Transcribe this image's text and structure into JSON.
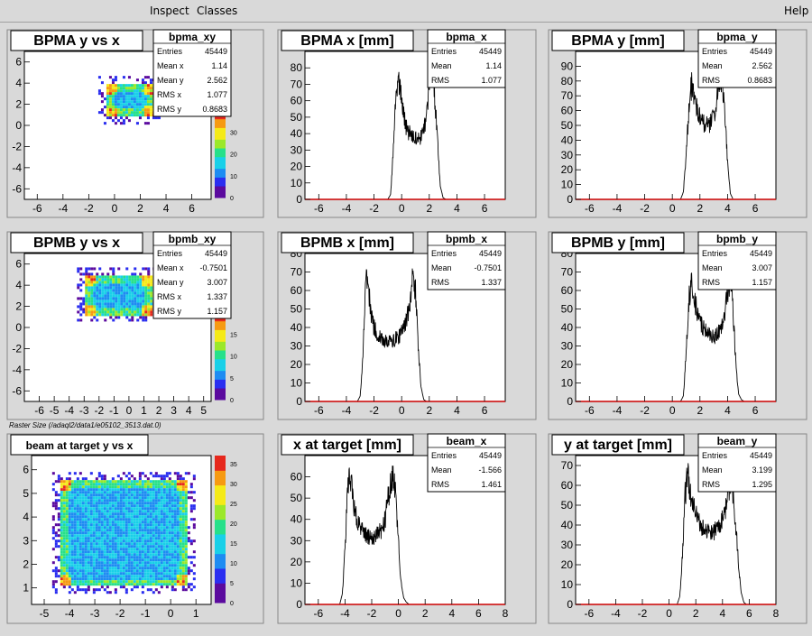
{
  "menu": {
    "inspect": "Inspect",
    "classes": "Classes",
    "help": "Help"
  },
  "canvas_note": "Raster Size (/adaql2/data1/e05102_3513.dat.0)",
  "stat_labels": {
    "entries": "Entries",
    "mean": "Mean",
    "mean_x": "Mean x",
    "mean_y": "Mean y",
    "rms": "RMS",
    "rms_x": "RMS x",
    "rms_y": "RMS y"
  },
  "palette": [
    "#5b0a9e",
    "#2a2ef0",
    "#1d8cf2",
    "#19d0e8",
    "#27e08a",
    "#9be82a",
    "#f5ea18",
    "#f69a12",
    "#e6281d"
  ],
  "chart_data": [
    {
      "type": "heatmap",
      "title": "BPMA y vs x",
      "stats_name": "bpma_xy",
      "stats": {
        "entries": "45449",
        "mean_x": "1.14",
        "mean_y": "2.562",
        "rms_x": "1.077",
        "rms_y": "0.8683"
      },
      "xlim": [
        -7,
        7.5
      ],
      "ylim": [
        -7,
        7
      ],
      "xticks": [
        -6,
        -4,
        -2,
        0,
        2,
        4,
        6
      ],
      "yticks": [
        -6,
        -4,
        -2,
        0,
        2,
        4,
        6
      ],
      "region": {
        "x": [
          -0.7,
          3.0
        ],
        "y": [
          1.0,
          4.0
        ]
      },
      "palette_ticks": [
        0,
        10,
        20,
        30
      ],
      "zmax": 40
    },
    {
      "type": "histogram",
      "title": "BPMA x [mm]",
      "stats_name": "bpma_x",
      "stats": {
        "entries": "45449",
        "mean": "1.14",
        "rms": "1.077"
      },
      "xlim": [
        -7,
        7.5
      ],
      "ylim": [
        0,
        90
      ],
      "xticks": [
        -6,
        -4,
        -2,
        0,
        2,
        4,
        6
      ],
      "yticks": [
        0,
        10,
        20,
        30,
        40,
        50,
        60,
        70,
        80
      ],
      "x": [
        -1.0,
        -0.8,
        -0.6,
        -0.4,
        -0.2,
        0.0,
        0.2,
        0.4,
        0.6,
        0.8,
        1.0,
        1.2,
        1.4,
        1.6,
        1.8,
        2.0,
        2.2,
        2.4,
        2.6,
        2.8,
        3.0,
        3.2
      ],
      "y": [
        0,
        3,
        30,
        68,
        73,
        60,
        48,
        42,
        40,
        38,
        37,
        36,
        38,
        42,
        52,
        70,
        78,
        62,
        35,
        8,
        1,
        0
      ]
    },
    {
      "type": "histogram",
      "title": "BPMA y [mm]",
      "stats_name": "bpma_y",
      "stats": {
        "entries": "45449",
        "mean": "2.562",
        "rms": "0.8683"
      },
      "xlim": [
        -7,
        7.5
      ],
      "ylim": [
        0,
        100
      ],
      "xticks": [
        -6,
        -4,
        -2,
        0,
        2,
        4,
        6
      ],
      "yticks": [
        0,
        10,
        20,
        30,
        40,
        50,
        60,
        70,
        80,
        90
      ],
      "x": [
        0.6,
        0.8,
        1.0,
        1.2,
        1.4,
        1.6,
        1.8,
        2.0,
        2.2,
        2.4,
        2.6,
        2.8,
        3.0,
        3.2,
        3.4,
        3.6,
        3.8,
        4.0,
        4.2,
        4.4
      ],
      "y": [
        0,
        5,
        30,
        62,
        78,
        70,
        60,
        55,
        52,
        50,
        50,
        52,
        56,
        65,
        78,
        80,
        60,
        25,
        4,
        0
      ]
    },
    {
      "type": "heatmap",
      "title": "BPMB y vs x",
      "stats_name": "bpmb_xy",
      "stats": {
        "entries": "45449",
        "mean_x": "-0.7501",
        "mean_y": "3.007",
        "rms_x": "1.337",
        "rms_y": "1.157"
      },
      "xlim": [
        -7,
        5.5
      ],
      "ylim": [
        -7,
        7
      ],
      "xticks": [
        -6,
        -5,
        -4,
        -3,
        -2,
        -1,
        0,
        1,
        2,
        3,
        4,
        5
      ],
      "yticks": [
        -6,
        -4,
        -2,
        0,
        2,
        4,
        6
      ],
      "region": {
        "x": [
          -3.0,
          1.5
        ],
        "y": [
          1.3,
          5.0
        ]
      },
      "palette_ticks": [
        0,
        5,
        10,
        15
      ],
      "zmax": 20
    },
    {
      "type": "histogram",
      "title": "BPMB x [mm]",
      "stats_name": "bpmb_x",
      "stats": {
        "entries": "45449",
        "mean": "-0.7501",
        "rms": "1.337"
      },
      "xlim": [
        -7,
        7.5
      ],
      "ylim": [
        0,
        80
      ],
      "xticks": [
        -6,
        -4,
        -2,
        0,
        2,
        4,
        6
      ],
      "yticks": [
        0,
        10,
        20,
        30,
        40,
        50,
        60,
        70,
        80
      ],
      "x": [
        -3.2,
        -3.0,
        -2.8,
        -2.6,
        -2.4,
        -2.2,
        -2.0,
        -1.8,
        -1.6,
        -1.4,
        -1.2,
        -1.0,
        -0.8,
        -0.6,
        -0.4,
        -0.2,
        0.0,
        0.2,
        0.4,
        0.6,
        0.8,
        1.0,
        1.2,
        1.4,
        1.6,
        1.8
      ],
      "y": [
        0,
        3,
        25,
        68,
        62,
        48,
        40,
        37,
        35,
        34,
        33,
        32,
        33,
        33,
        34,
        35,
        37,
        40,
        45,
        55,
        68,
        60,
        30,
        8,
        1,
        0
      ]
    },
    {
      "type": "histogram",
      "title": "BPMB y [mm]",
      "stats_name": "bpmb_y",
      "stats": {
        "entries": "45449",
        "mean": "3.007",
        "rms": "1.157"
      },
      "xlim": [
        -7,
        7.5
      ],
      "ylim": [
        0,
        80
      ],
      "xticks": [
        -6,
        -4,
        -2,
        0,
        2,
        4,
        6
      ],
      "yticks": [
        0,
        10,
        20,
        30,
        40,
        50,
        60,
        70,
        80
      ],
      "x": [
        0.6,
        0.8,
        1.0,
        1.2,
        1.4,
        1.6,
        1.8,
        2.0,
        2.2,
        2.4,
        2.6,
        2.8,
        3.0,
        3.2,
        3.4,
        3.6,
        3.8,
        4.0,
        4.2,
        4.4,
        4.6,
        4.8,
        5.0,
        5.2
      ],
      "y": [
        0,
        3,
        25,
        55,
        65,
        55,
        48,
        44,
        40,
        38,
        36,
        35,
        35,
        36,
        38,
        42,
        48,
        58,
        66,
        50,
        20,
        4,
        1,
        0
      ]
    },
    {
      "type": "heatmap",
      "title": "beam at target y vs x",
      "stats_name": "",
      "xlim": [
        -5.5,
        1.6
      ],
      "ylim": [
        0.3,
        6.6
      ],
      "xticks": [
        -5,
        -4,
        -3,
        -2,
        -1,
        0,
        1
      ],
      "yticks": [
        1,
        2,
        3,
        4,
        5,
        6
      ],
      "region": {
        "x": [
          -4.4,
          0.6
        ],
        "y": [
          1.1,
          5.6
        ]
      },
      "palette_ticks": [
        0,
        5,
        10,
        15,
        20,
        25,
        30,
        35
      ],
      "zmax": 37
    },
    {
      "type": "histogram",
      "title": "x at target [mm]",
      "stats_name": "beam_x",
      "stats": {
        "entries": "45449",
        "mean": "-1.566",
        "rms": "1.461"
      },
      "xlim": [
        -7,
        8
      ],
      "ylim": [
        0,
        70
      ],
      "xticks": [
        -6,
        -4,
        -2,
        0,
        2,
        4,
        6,
        8
      ],
      "yticks": [
        0,
        10,
        20,
        30,
        40,
        50,
        60
      ],
      "x": [
        -4.4,
        -4.2,
        -4.0,
        -3.8,
        -3.6,
        -3.4,
        -3.2,
        -3.0,
        -2.8,
        -2.6,
        -2.4,
        -2.2,
        -2.0,
        -1.8,
        -1.6,
        -1.4,
        -1.2,
        -1.0,
        -0.8,
        -0.6,
        -0.4,
        -0.2,
        0.0,
        0.2,
        0.4,
        0.6,
        0.8,
        1.0
      ],
      "y": [
        0,
        5,
        25,
        55,
        60,
        50,
        42,
        38,
        36,
        34,
        33,
        32,
        31,
        32,
        33,
        34,
        36,
        40,
        48,
        58,
        62,
        50,
        30,
        10,
        3,
        1,
        0,
        0
      ]
    },
    {
      "type": "histogram",
      "title": "y at target [mm]",
      "stats_name": "beam_y",
      "stats": {
        "entries": "45449",
        "mean": "3.199",
        "rms": "1.295"
      },
      "xlim": [
        -7,
        8
      ],
      "ylim": [
        0,
        75
      ],
      "xticks": [
        -6,
        -4,
        -2,
        0,
        2,
        4,
        6,
        8
      ],
      "yticks": [
        0,
        10,
        20,
        30,
        40,
        50,
        60,
        70
      ],
      "x": [
        0.6,
        0.8,
        1.0,
        1.2,
        1.4,
        1.6,
        1.8,
        2.0,
        2.2,
        2.4,
        2.6,
        2.8,
        3.0,
        3.2,
        3.4,
        3.6,
        3.8,
        4.0,
        4.2,
        4.4,
        4.6,
        4.8,
        5.0,
        5.2,
        5.4,
        5.6,
        5.8
      ],
      "y": [
        0,
        4,
        25,
        55,
        65,
        55,
        50,
        45,
        42,
        40,
        38,
        37,
        36,
        36,
        37,
        38,
        40,
        43,
        48,
        55,
        62,
        55,
        40,
        20,
        6,
        1,
        0
      ]
    }
  ]
}
